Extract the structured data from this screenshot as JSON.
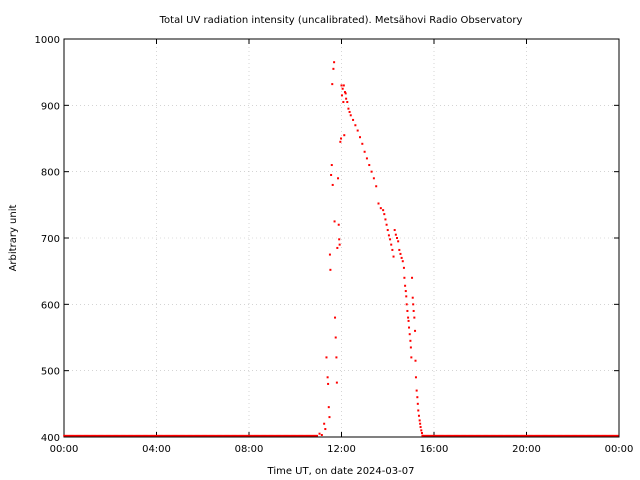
{
  "chart_data": {
    "type": "scatter",
    "title": "Total UV radiation intensity (uncalibrated). Metsähovi Radio Observatory",
    "xlabel": "Time UT, on date 2024-03-07",
    "ylabel": "Arbitrary unit",
    "x_unit": "hours UT",
    "xlim": [
      0,
      24
    ],
    "ylim": [
      400,
      1000
    ],
    "x_tick_labels": [
      "00:00",
      "04:00",
      "08:00",
      "12:00",
      "16:00",
      "20:00",
      "00:00"
    ],
    "x_tick_values": [
      0,
      4,
      8,
      12,
      16,
      20,
      24
    ],
    "y_ticks": [
      400,
      500,
      600,
      700,
      800,
      900,
      1000
    ],
    "grid": true,
    "legend": "none",
    "marker_color": "#ff0000",
    "series": [
      {
        "points_x": [
          11.05,
          11.15,
          11.25,
          11.3,
          11.35,
          11.4,
          11.42,
          11.45,
          11.48,
          11.5,
          11.52,
          11.55,
          11.58,
          11.6,
          11.62,
          11.65,
          11.68,
          11.7,
          11.72,
          11.75,
          11.78,
          11.8,
          11.82,
          11.85,
          11.88,
          11.9,
          11.92,
          11.95,
          11.98,
          12.0,
          12.02,
          12.05,
          12.08,
          12.1,
          12.12,
          12.15,
          12.18,
          12.2,
          12.25,
          12.3,
          12.35,
          12.4,
          12.5,
          12.6,
          12.7,
          12.8,
          12.9,
          13.0,
          13.1,
          13.2,
          13.3,
          13.4,
          13.5,
          13.6,
          13.7,
          13.8,
          13.85,
          13.9,
          13.95,
          14.0,
          14.05,
          14.1,
          14.15,
          14.2,
          14.25,
          14.3,
          14.35,
          14.4,
          14.45,
          14.5,
          14.55,
          14.6,
          14.65,
          14.7,
          14.72,
          14.75,
          14.78,
          14.8,
          14.82,
          14.85,
          14.88,
          14.9,
          14.92,
          14.95,
          14.98,
          15.0,
          15.02,
          15.05,
          15.08,
          15.1,
          15.12,
          15.15,
          15.18,
          15.2,
          15.22,
          15.25,
          15.28,
          15.3,
          15.32,
          15.35,
          15.38,
          15.4,
          15.42,
          15.45,
          15.48,
          15.5
        ],
        "points_y": [
          405,
          403,
          420,
          412,
          520,
          490,
          480,
          445,
          430,
          675,
          652,
          795,
          810,
          932,
          780,
          955,
          965,
          725,
          580,
          550,
          520,
          482,
          685,
          790,
          720,
          698,
          690,
          845,
          850,
          930,
          915,
          925,
          905,
          930,
          855,
          920,
          918,
          910,
          905,
          895,
          890,
          885,
          878,
          870,
          862,
          852,
          842,
          830,
          820,
          810,
          800,
          790,
          778,
          752,
          745,
          742,
          736,
          728,
          720,
          712,
          704,
          698,
          690,
          682,
          672,
          712,
          705,
          700,
          695,
          682,
          676,
          670,
          665,
          655,
          640,
          628,
          620,
          612,
          600,
          590,
          580,
          575,
          565,
          555,
          545,
          535,
          520,
          640,
          610,
          600,
          590,
          580,
          560,
          515,
          490,
          470,
          460,
          450,
          440,
          432,
          425,
          420,
          415,
          410,
          406,
          402
        ],
        "baseline_value": 402
      }
    ]
  }
}
